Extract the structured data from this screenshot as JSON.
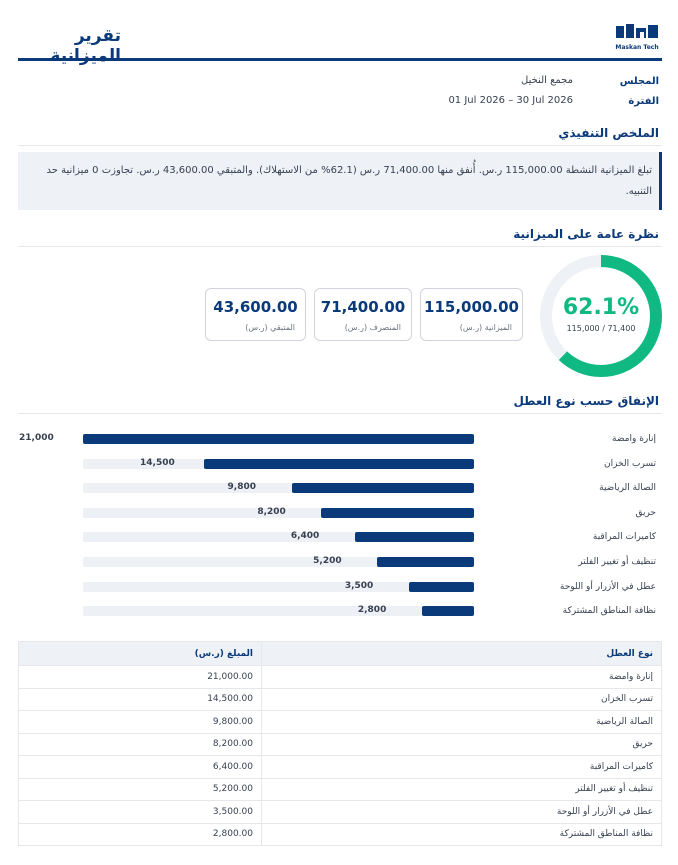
{
  "header": {
    "title": "تقرير الميزانية",
    "logo_text": "Maskan Tech"
  },
  "meta": {
    "council_label": "المجلس",
    "council_value": "مجمع النخيل",
    "period_label": "الفترة",
    "period_value": "01 Jul 2026 – 30 Jul 2026"
  },
  "summary": {
    "title": "الملخص التنفيذي",
    "text": "تبلغ الميزانية النشطة 115,000.00 ر.س. أُنفق منها 71,400.00 ر.س (62.1% من الاستهلاك). والمتبقي 43,600.00 ر.س. تجاوزت 0 ميزانية حد التنبيه."
  },
  "overview": {
    "title": "نظرة عامة على الميزانية",
    "gauge_percent": "62.1%",
    "gauge_fraction": 0.621,
    "gauge_sub": "71,400 / 115,000",
    "cards": [
      {
        "value": "115,000.00",
        "label": "الميزانية (ر.س)"
      },
      {
        "value": "71,400.00",
        "label": "المنصرف (ر.س)"
      },
      {
        "value": "43,600.00",
        "label": "المتبقي (ر.س)"
      }
    ]
  },
  "spending": {
    "title": "الإنفاق حسب نوع العطل"
  },
  "chart_data": {
    "type": "bar",
    "title": "الإنفاق حسب نوع العطل",
    "categories": [
      "إنارة وامضة",
      "تسرب الخزان",
      "الصالة الرياضية",
      "حريق",
      "كاميرات المراقبة",
      "تنظيف أو تغيير الفلتر",
      "عطل في الأزرار أو اللوحة",
      "نظافة المناطق المشتركة"
    ],
    "values": [
      21000,
      14500,
      9800,
      8200,
      6400,
      5200,
      3500,
      2800
    ],
    "value_labels": [
      "21,000",
      "14,500",
      "9,800",
      "8,200",
      "6,400",
      "5,200",
      "3,500",
      "2,800"
    ],
    "xlim": [
      0,
      21000
    ],
    "bar_color": "#0b3a7a"
  },
  "table": {
    "headers": [
      "نوع العطل",
      "المبلغ (ر.س)"
    ],
    "rows": [
      [
        "إنارة وامضة",
        "21,000.00"
      ],
      [
        "تسرب الخزان",
        "14,500.00"
      ],
      [
        "الصالة الرياضية",
        "9,800.00"
      ],
      [
        "حريق",
        "8,200.00"
      ],
      [
        "كاميرات المراقبة",
        "6,400.00"
      ],
      [
        "تنظيف أو تغيير الفلتر",
        "5,200.00"
      ],
      [
        "عطل في الأزرار أو اللوحة",
        "3,500.00"
      ],
      [
        "نظافة المناطق المشتركة",
        "2,800.00"
      ]
    ]
  },
  "colors": {
    "brand": "#0b3a7a",
    "accent": "#10b981",
    "track": "#eef2f7"
  }
}
